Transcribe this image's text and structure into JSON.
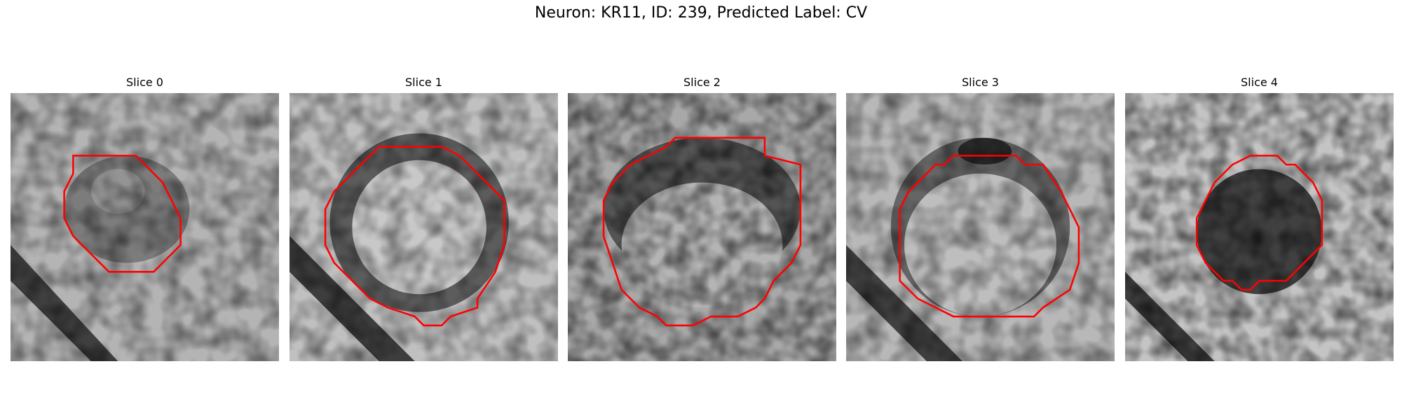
{
  "figure": {
    "title": "Neuron: KR11, ID: 239, Predicted Label: CV",
    "contour_color": "#ff0000",
    "panels": [
      {
        "title": "Slice 0"
      },
      {
        "title": "Slice 1"
      },
      {
        "title": "Slice 2"
      },
      {
        "title": "Slice 3"
      },
      {
        "title": "Slice 4"
      }
    ]
  }
}
